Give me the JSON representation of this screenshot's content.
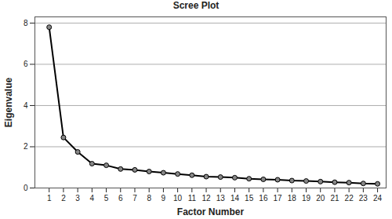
{
  "chart_data": {
    "type": "line",
    "title": "Scree Plot",
    "x_label": "Factor Number",
    "y_label": "Eigenvalue",
    "x": [
      1,
      2,
      3,
      4,
      5,
      6,
      7,
      8,
      9,
      10,
      11,
      12,
      13,
      14,
      15,
      16,
      17,
      18,
      19,
      20,
      21,
      22,
      23,
      24
    ],
    "values": [
      7.8,
      2.45,
      1.75,
      1.18,
      1.1,
      0.92,
      0.88,
      0.8,
      0.74,
      0.68,
      0.62,
      0.55,
      0.53,
      0.5,
      0.45,
      0.42,
      0.4,
      0.36,
      0.34,
      0.31,
      0.28,
      0.26,
      0.22,
      0.2
    ],
    "color": "#000000",
    "marker": "circle",
    "xlim": [
      0,
      24.6
    ],
    "xticks": [
      1,
      2,
      3,
      4,
      5,
      6,
      7,
      8,
      9,
      10,
      11,
      12,
      13,
      14,
      15,
      16,
      17,
      18,
      19,
      20,
      21,
      22,
      23,
      24
    ],
    "ylim": [
      0,
      8.3
    ],
    "yticks": [
      0,
      2,
      4,
      6,
      8
    ],
    "grid": true
  }
}
